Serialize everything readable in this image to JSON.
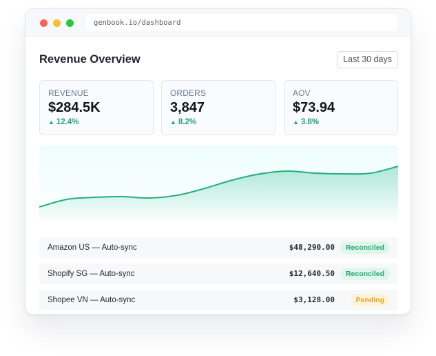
{
  "window": {
    "url": "genbook.io/dashboard"
  },
  "header": {
    "title": "Revenue Overview",
    "range_label": "Last 30 days"
  },
  "kpis": [
    {
      "label": "REVENUE",
      "value": "$284.5K",
      "delta": "12.4%"
    },
    {
      "label": "ORDERS",
      "value": "3,847",
      "delta": "8.2%"
    },
    {
      "label": "AOV",
      "value": "$73.94",
      "delta": "3.8%"
    }
  ],
  "colors": {
    "accent_green": "#1fa774",
    "pending_amber": "#e9a21c"
  },
  "chart_data": {
    "type": "area",
    "series": [
      {
        "values": [
          21,
          32,
          35,
          36,
          34,
          38,
          48,
          60,
          69,
          73,
          70,
          69,
          70,
          80
        ]
      }
    ],
    "ylim": [
      0,
      100
    ],
    "grid": false
  },
  "rows": [
    {
      "name": "Amazon US — Auto-sync",
      "amount": "$48,290.00",
      "status": "Reconciled",
      "status_key": "reconciled"
    },
    {
      "name": "Shopify SG — Auto-sync",
      "amount": "$12,640.50",
      "status": "Reconciled",
      "status_key": "reconciled"
    },
    {
      "name": "Shopee VN — Auto-sync",
      "amount": "$3,128.00",
      "status": "Pending",
      "status_key": "pending"
    }
  ]
}
